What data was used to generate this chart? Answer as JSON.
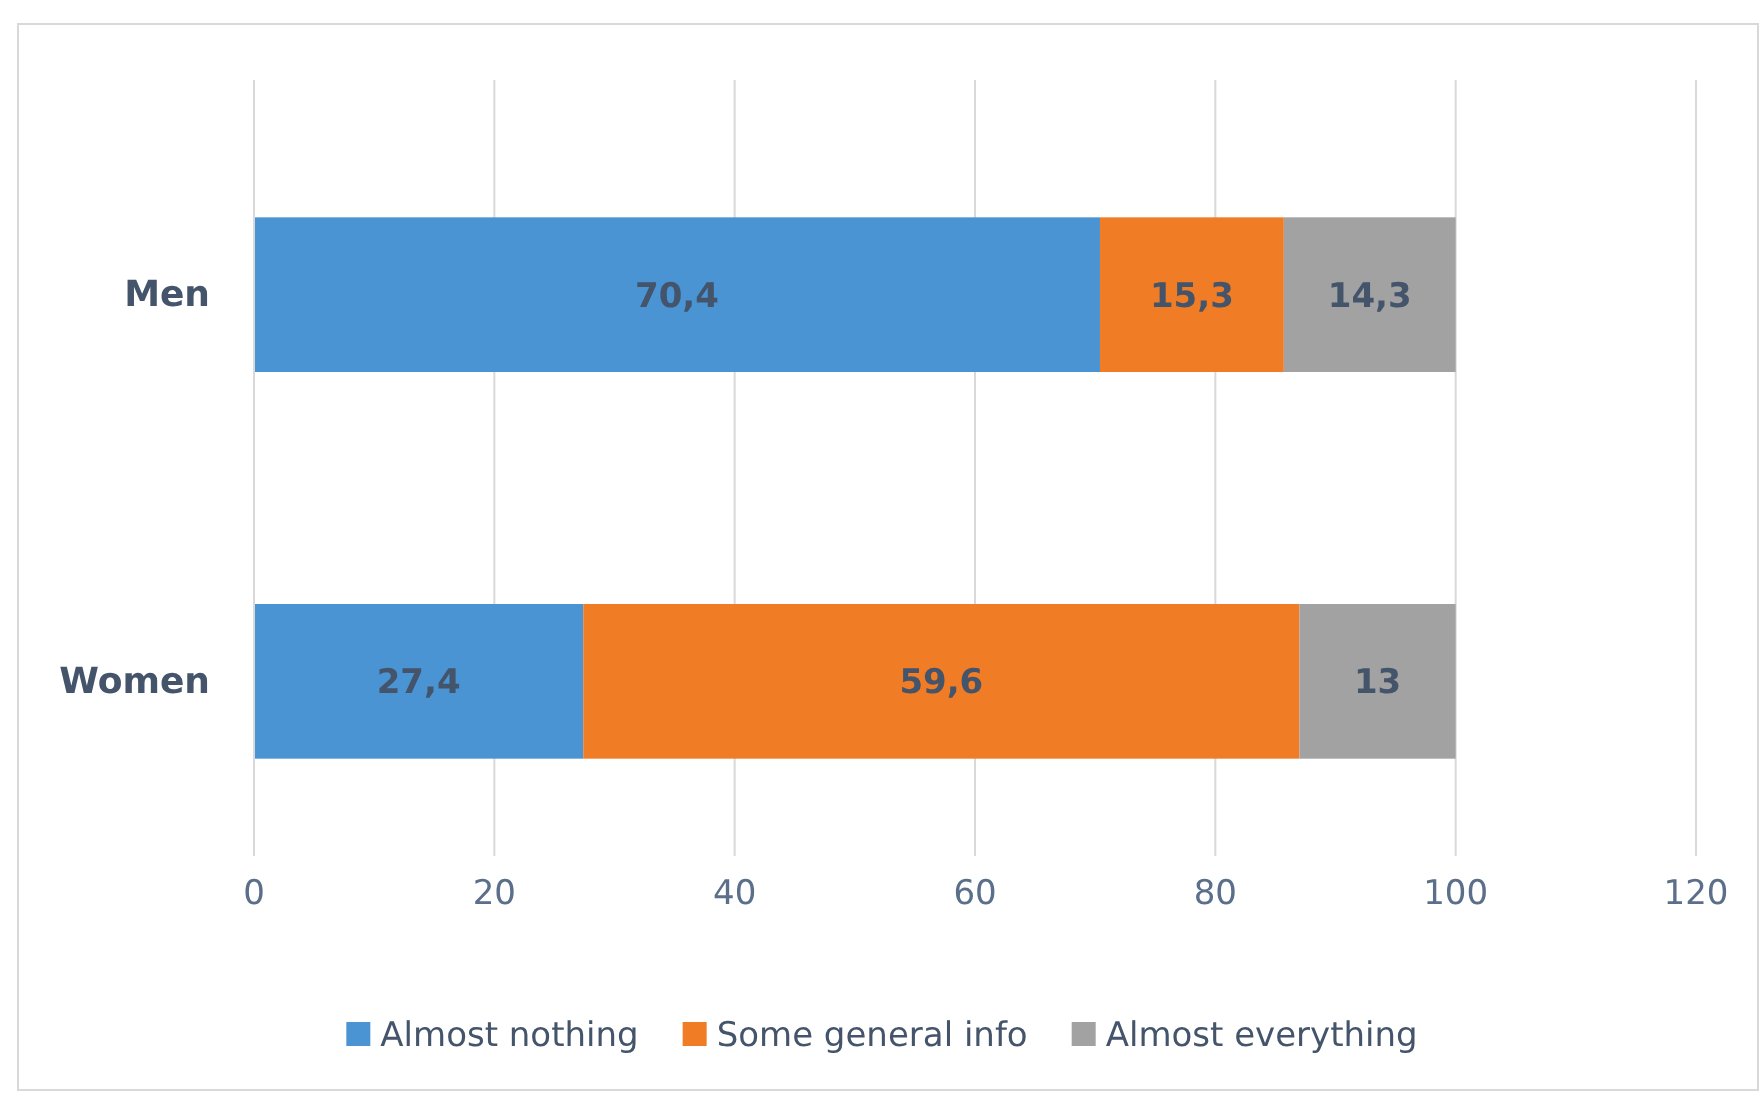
{
  "chart_data": {
    "type": "bar",
    "orientation": "horizontal",
    "stacked": true,
    "categories": [
      "Men",
      "Women"
    ],
    "series": [
      {
        "name": "Almost nothing",
        "color": "#4a94d4",
        "values": [
          70.4,
          27.4
        ],
        "value_labels": [
          "70,4",
          "27,4"
        ]
      },
      {
        "name": "Some general info",
        "color": "#f07c25",
        "values": [
          15.3,
          59.6
        ],
        "value_labels": [
          "15,3",
          "59,6"
        ]
      },
      {
        "name": "Almost everything",
        "color": "#a2a2a2",
        "values": [
          14.3,
          13
        ],
        "value_labels": [
          "14,3",
          "13"
        ]
      }
    ],
    "xlim": [
      0,
      120
    ],
    "xticks": [
      0,
      20,
      40,
      60,
      80,
      100,
      120
    ],
    "grid": "x",
    "legend": "bottom"
  }
}
